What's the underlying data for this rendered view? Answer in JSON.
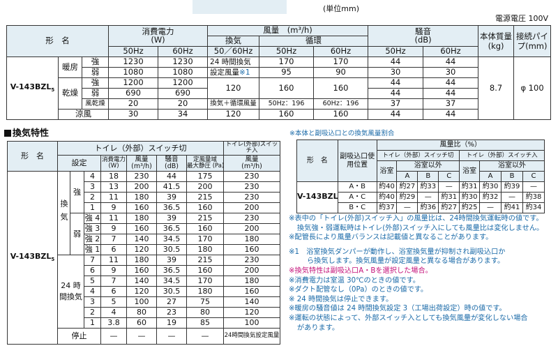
{
  "unit_label": "(単位mm)",
  "voltage": "電源電圧 100V",
  "spec": {
    "h_model": "形　名",
    "h_power": "消費電力",
    "h_power_unit": "(W)",
    "h_airflow": "風量　(m³/h)",
    "h_vent": "換気",
    "h_circ": "循環",
    "h_noise": "騒音",
    "h_noise_unit": "(dB)",
    "h_mass": "本体質量(kg)",
    "h_pipe": "接続パイプ(mm)",
    "hz50": "50Hz",
    "hz60": "60Hz",
    "hz5060": "50／60Hz",
    "model": "V-143BZL",
    "model_sub": "5",
    "mass": "8.7",
    "pipe": "φ 100",
    "heat": "暖房",
    "dry": "乾燥",
    "cool": "涼風",
    "strong": "強",
    "weak": "弱",
    "kaze": "風乾燥",
    "r1": [
      "1230",
      "1230",
      "24 時間換気",
      "170",
      "170",
      "44",
      "44"
    ],
    "r2": [
      "1080",
      "1080",
      "設定風量",
      "※1",
      "95",
      "90",
      "30",
      "30"
    ],
    "r3": [
      "1200",
      "1200",
      "44",
      "44"
    ],
    "r3_vent": "120",
    "r3_c50": "160",
    "r3_c60": "160",
    "r4": [
      "690",
      "690",
      "44",
      "44"
    ],
    "r5": [
      "20",
      "20",
      "換気＋循環風量",
      "50Hz：196",
      "60Hz：196",
      "37",
      "37"
    ],
    "r6": [
      "30",
      "34",
      "120",
      "160",
      "160",
      "44",
      "44"
    ]
  },
  "section_title": "換気特性",
  "note_ratio": "※本体と副吸込口との換気風量割合",
  "vent": {
    "h_model": "形　名",
    "h_switch_off": "トイレ（外部）スイッチ切",
    "h_switch_on": "トイレ(外部)スイッチ入",
    "h_setting": "設定",
    "h_power": "消費電力",
    "h_power_unit": "(W)",
    "h_air": "風量",
    "h_air_unit": "(m³/h)",
    "h_noise": "騒音",
    "h_noise_unit": "(dB)",
    "h_pressure": "定風量域",
    "h_pressure2": "最大静圧 (Pa)",
    "h_air2": "風量",
    "h_air2_unit": "(m³/h)",
    "model": "V-143BZL",
    "model_sub": "5",
    "g_vent": "換気",
    "g_strong": "強",
    "g_weak": "弱",
    "g_24": "24 時間換気",
    "stop": "停止",
    "stop_last": "24時間換気設定風量",
    "rows": [
      [
        "4",
        "18",
        "230",
        "44",
        "175",
        "230"
      ],
      [
        "3",
        "13",
        "200",
        "41.5",
        "200",
        "230"
      ],
      [
        "2",
        "11",
        "180",
        "39",
        "215",
        "230"
      ],
      [
        "1",
        "9",
        "160",
        "36.5",
        "160",
        "200"
      ],
      [
        "強 4",
        "11",
        "180",
        "39",
        "215",
        "230"
      ],
      [
        "強 3",
        "9",
        "160",
        "36.5",
        "160",
        "200"
      ],
      [
        "強 2",
        "7",
        "140",
        "34.5",
        "170",
        "180"
      ],
      [
        "強 1",
        "6",
        "120",
        "30.5",
        "180",
        "160"
      ],
      [
        "7",
        "11",
        "180",
        "39",
        "215",
        "230"
      ],
      [
        "6",
        "9",
        "160",
        "36.5",
        "160",
        "200"
      ],
      [
        "5",
        "7",
        "140",
        "34.5",
        "170",
        "180"
      ],
      [
        "4",
        "6",
        "120",
        "30.5",
        "180",
        "160"
      ],
      [
        "3",
        "5",
        "100",
        "27",
        "75",
        "140"
      ],
      [
        "2",
        "4",
        "80",
        "23",
        "80",
        "120"
      ],
      [
        "1",
        "3.8",
        "60",
        "19",
        "85",
        "100"
      ]
    ],
    "stop_vals": [
      "—",
      "—",
      "—",
      "—"
    ]
  },
  "ratio": {
    "h_model": "形　名",
    "h_position": "副吸込口使用位置",
    "h_ratio": "風量比（%）",
    "h_off": "トイレ（外部）スイッチ切",
    "h_on": "トイレ（外部）スイッチ入",
    "h_bath": "浴室",
    "h_other": "浴室以外",
    "a": "A",
    "b": "B",
    "c": "C",
    "model": "V-143BZL",
    "model_sub": "5",
    "rows": [
      [
        "A・B",
        "約40",
        "約27",
        "約33",
        "—",
        "約31",
        "約30",
        "約39",
        "—"
      ],
      [
        "A・C",
        "約40",
        "約29",
        "—",
        "約31",
        "約30",
        "約32",
        "—",
        "約38"
      ],
      [
        "B・C",
        "約37",
        "—",
        "約36",
        "約27",
        "約25",
        "—",
        "約41",
        "約34"
      ]
    ]
  },
  "notes": {
    "n1": "※表中の「トイレ(外部)スイッチ入」の風量比は、24時間換気運転時の値です。",
    "n1b": "換気強・弱運転時はトイレ(外部)スイッチ入にしても風量比は変化しません。",
    "n2": "※配管長により風量バランスは記載値と異なることがあります。",
    "n3": "※1　浴室換気ダンパーが動作し、浴室換気量が抑制され副吸込口か",
    "n3b": "ら換気します。換気風量が設定風量と異なる場合があります。",
    "n4": "※換気特性は副吸込口A・Bを選択した場合。",
    "n5": "※消費電力は室温 30℃のときの値です。",
    "n6": "※ダクト配管なし（0Pa）のときの値です。",
    "n7": "※ 24 時間換気は停止できます。",
    "n8": "※暖房の騒音値は 24 時間換気設定 3（工場出荷設定）時の値です。",
    "n9": "※運転の状態によって、外部スイッチ入としても換気風量が変化しない場合",
    "n9b": "があります。"
  }
}
